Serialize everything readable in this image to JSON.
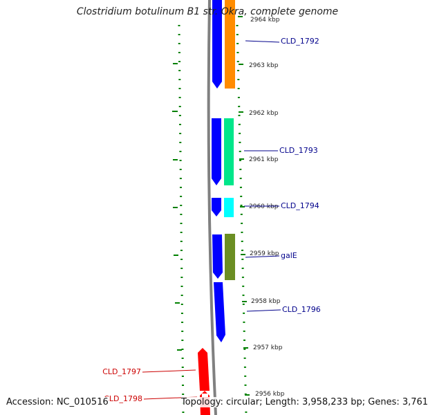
{
  "title": "Clostridium botulinum B1 str. Okra, complete genome",
  "footer": {
    "accession": "Accession: NC_010516",
    "summary": "Topology: circular; Length: 3,958,233 bp; Genes: 3,761"
  },
  "colors": {
    "backbone": "#808080",
    "forward_cds": "#0000ff",
    "reverse_gene": "#ff0000",
    "tick": "#008000",
    "label_forward": "#00008b",
    "label_reverse": "#cc0000"
  },
  "scale": {
    "unit": "kbp",
    "ticks": [
      "2964 kbp",
      "2963 kbp",
      "2962 kbp",
      "2961 kbp",
      "2960 kbp",
      "2959 kbp",
      "2958 kbp",
      "2957 kbp",
      "2956 kbp"
    ]
  },
  "genes": [
    {
      "label": "CLD_1792",
      "strand": "forward",
      "color": "#ff8c00"
    },
    {
      "label": "CLD_1793",
      "strand": "forward",
      "color": "#00e68a"
    },
    {
      "label": "CLD_1794",
      "strand": "forward",
      "color": "#00ffff"
    },
    {
      "label": "galE",
      "strand": "forward",
      "color": "#6b8e23"
    },
    {
      "label": "CLD_1796",
      "strand": "forward",
      "color": "#0000ff"
    },
    {
      "label": "CLD_1797",
      "strand": "reverse",
      "color": "#ff0000"
    },
    {
      "label": "CLD_1798",
      "strand": "reverse",
      "color": "#ff0000"
    }
  ]
}
